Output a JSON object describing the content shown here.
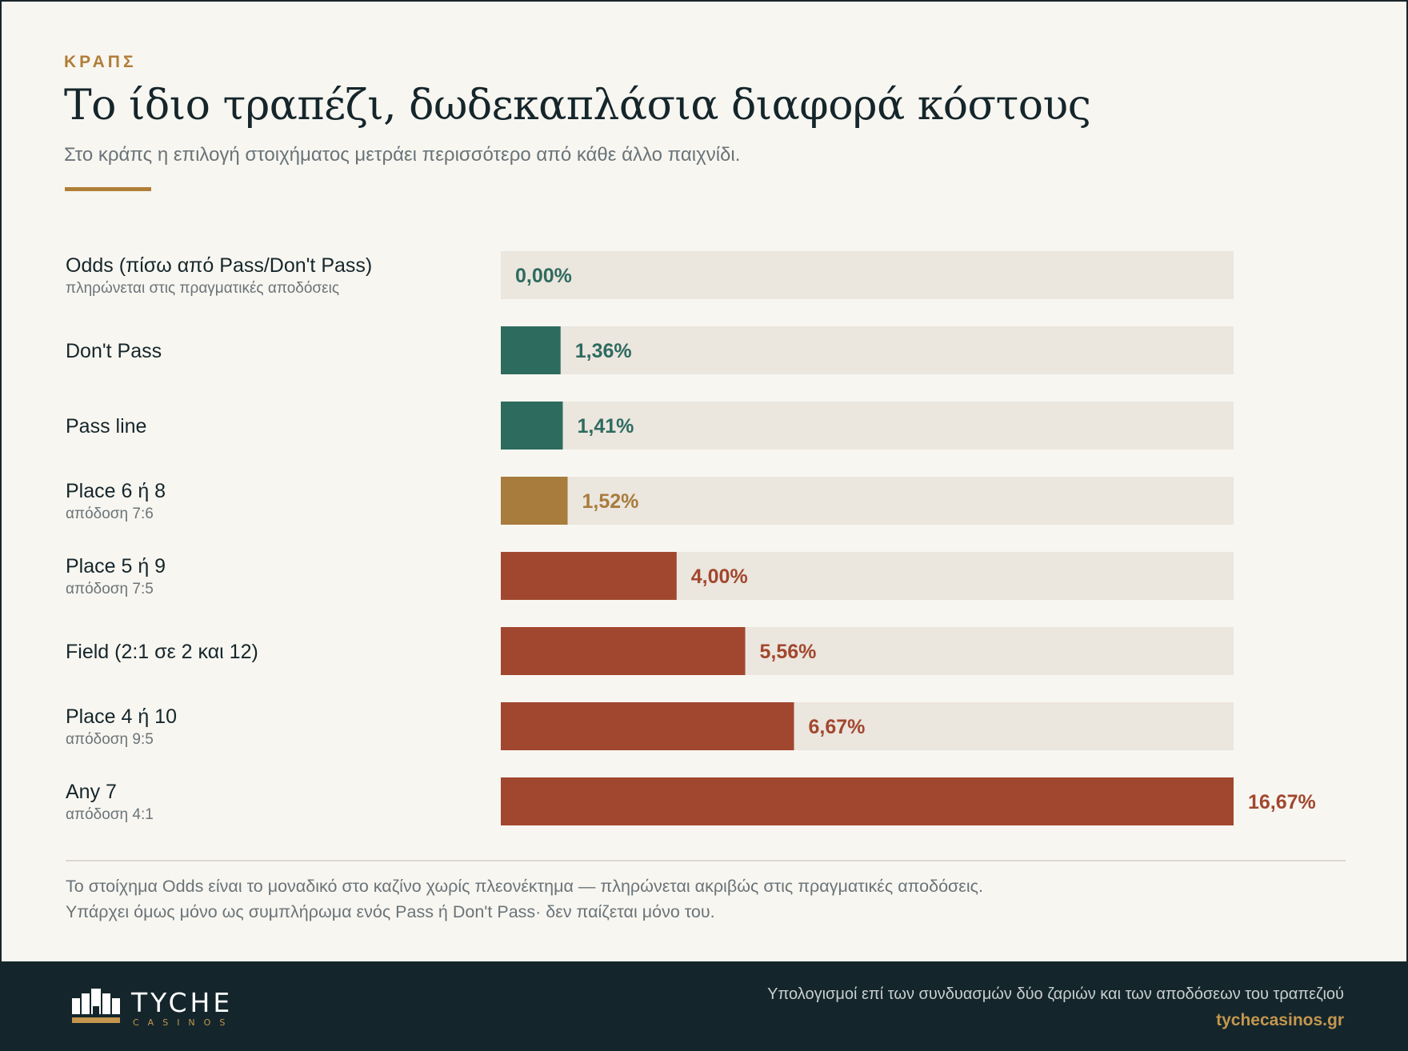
{
  "header": {
    "eyebrow": "ΚΡΑΠΣ",
    "title": "Το ίδιο τραπέζι, δωδεκαπλάσια διαφορά κόστους",
    "subtitle": "Στο κράπς η επιλογή στοιχήματος μετράει περισσότερο από κάθε άλλο παιχνίδι."
  },
  "colors": {
    "track": "#ebe6de",
    "low": "#2e6b5f",
    "mid": "#a87c3d",
    "high": "#a2472f",
    "accent": "#b07e38",
    "dark": "#14262b"
  },
  "chart_data": {
    "type": "bar",
    "orientation": "horizontal",
    "unit": "%",
    "xlim": [
      0,
      16.67
    ],
    "grid": false,
    "categories": [
      "Odds (πίσω από Pass/Don't Pass)",
      "Don't Pass",
      "Pass line",
      "Place 6 ή 8",
      "Place 5 ή 9",
      "Field (2:1 σε 2 και 12)",
      "Place 4 ή 10",
      "Any 7"
    ],
    "sublabels": [
      "πληρώνεται στις πραγματικές αποδόσεις",
      "",
      "",
      "απόδοση 7:6",
      "απόδοση 7:5",
      "",
      "απόδοση 9:5",
      "απόδοση 4:1"
    ],
    "values": [
      0.0,
      1.36,
      1.41,
      1.52,
      4.0,
      5.56,
      6.67,
      16.67
    ],
    "value_labels": [
      "0,00%",
      "1,36%",
      "1,41%",
      "1,52%",
      "4,00%",
      "5,56%",
      "6,67%",
      "16,67%"
    ],
    "tiers": [
      "low",
      "low",
      "low",
      "mid",
      "high",
      "high",
      "high",
      "high"
    ]
  },
  "footnote": {
    "line1": "Το στοίχημα Odds είναι το μοναδικό στο καζίνο χωρίς πλεονέκτημα — πληρώνεται ακριβώς στις πραγματικές αποδόσεις.",
    "line2": "Υπάρχει όμως μόνο ως συμπλήρωμα ενός Pass ή Don't Pass· δεν παίζεται μόνο του."
  },
  "footer": {
    "brand": "TYCHE",
    "brand_sub": "CASINOS",
    "note": "Υπολογισμοί επί των συνδυασμών δύο ζαριών και των αποδόσεων του τραπεζιού",
    "url": "tychecasinos.gr"
  }
}
